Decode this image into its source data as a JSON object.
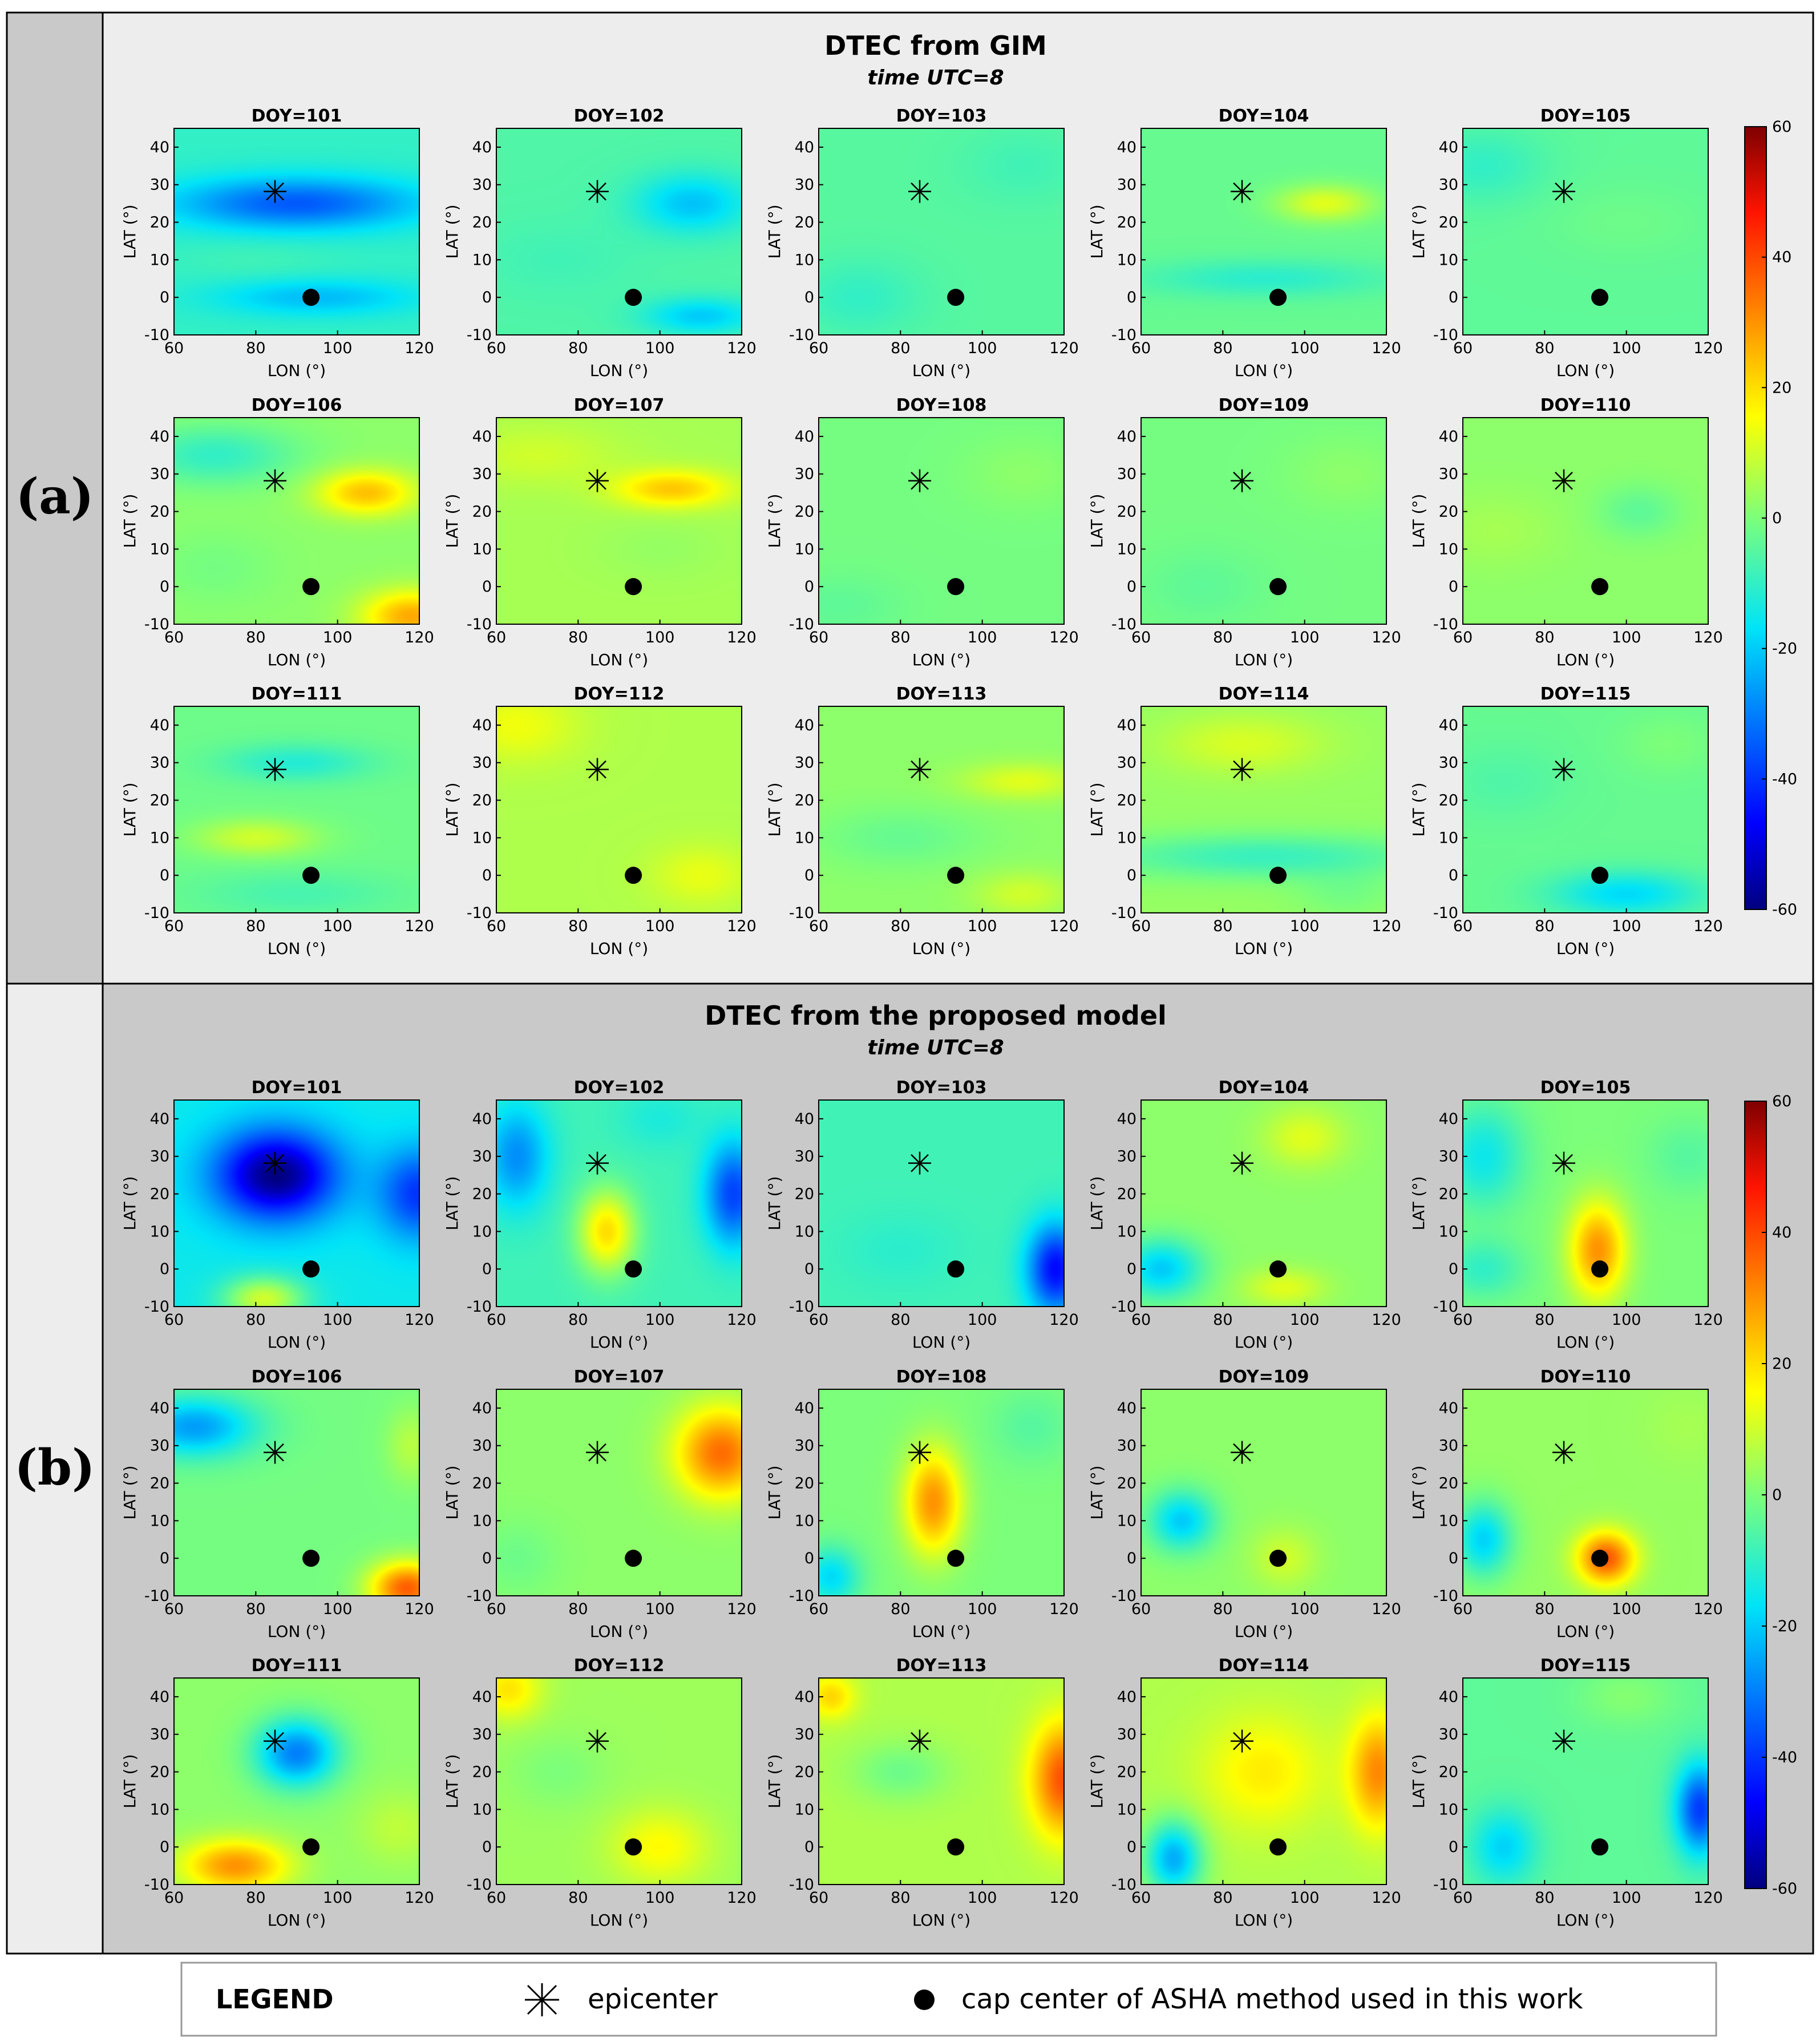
{
  "panels": [
    {
      "label": "(a)",
      "title": "DTEC from GIM",
      "subtitle": "time UTC=8",
      "bg": "#ededed",
      "label_bg": "#c9c9c9"
    },
    {
      "label": "(b)",
      "title": "DTEC from the proposed model",
      "subtitle": "time UTC=8",
      "bg": "#c9c9c9",
      "label_bg": "#ededed"
    }
  ],
  "legend": {
    "title": "LEGEND",
    "items": [
      {
        "symbol": "asterisk",
        "label": "epicenter"
      },
      {
        "symbol": "dot",
        "label": "cap center of ASHA method used in this work"
      }
    ]
  },
  "chart_data": {
    "type": "heatmap",
    "grid": {
      "rows": 3,
      "cols": 5
    },
    "xlabel": "LON (°)",
    "ylabel": "LAT (°)",
    "xlim": [
      60,
      120
    ],
    "ylim": [
      -10,
      45
    ],
    "xticks": [
      60,
      80,
      100,
      120
    ],
    "yticks": [
      -10,
      0,
      10,
      20,
      30,
      40
    ],
    "epicenter": {
      "lon": 84.7,
      "lat": 28.2
    },
    "cap_center": {
      "lon": 93.5,
      "lat": 0
    },
    "colorbar": {
      "min": -60,
      "max": 60,
      "ticks": [
        60,
        40,
        20,
        0,
        -20,
        -40,
        -60
      ]
    },
    "panels": [
      {
        "name": "DTEC from GIM",
        "maps": [
          {
            "label": "DOY=101",
            "base": -10,
            "blobs": [
              [
                90,
                25,
                -25,
                30,
                7
              ],
              [
                95,
                0,
                -12,
                25,
                5
              ],
              [
                80,
                10,
                2,
                20,
                6
              ]
            ]
          },
          {
            "label": "DOY=102",
            "base": -6,
            "blobs": [
              [
                108,
                25,
                -15,
                14,
                8
              ],
              [
                110,
                -5,
                -14,
                14,
                5
              ],
              [
                75,
                10,
                -2,
                20,
                10
              ]
            ]
          },
          {
            "label": "DOY=103",
            "base": -5,
            "blobs": [
              [
                70,
                0,
                -5,
                15,
                10
              ],
              [
                110,
                35,
                -3,
                15,
                10
              ]
            ]
          },
          {
            "label": "DOY=104",
            "base": -3,
            "blobs": [
              [
                105,
                25,
                15,
                12,
                5
              ],
              [
                90,
                5,
                -8,
                30,
                5
              ]
            ]
          },
          {
            "label": "DOY=105",
            "base": -4,
            "blobs": [
              [
                65,
                35,
                -6,
                15,
                10
              ],
              [
                100,
                20,
                2,
                20,
                10
              ]
            ]
          },
          {
            "label": "DOY=106",
            "base": 2,
            "blobs": [
              [
                107,
                25,
                22,
                12,
                6
              ],
              [
                118,
                -8,
                25,
                12,
                7
              ],
              [
                70,
                35,
                -12,
                20,
                8
              ],
              [
                70,
                5,
                -3,
                15,
                10
              ]
            ]
          },
          {
            "label": "DOY=107",
            "base": 5,
            "blobs": [
              [
                103,
                26,
                18,
                14,
                5
              ],
              [
                100,
                10,
                -2,
                15,
                8
              ],
              [
                70,
                35,
                5,
                20,
                8
              ]
            ]
          },
          {
            "label": "DOY=108",
            "base": -1,
            "blobs": [
              [
                110,
                30,
                3,
                15,
                10
              ],
              [
                65,
                -5,
                -3,
                15,
                8
              ]
            ]
          },
          {
            "label": "DOY=109",
            "base": -1,
            "blobs": [
              [
                110,
                30,
                3,
                15,
                10
              ],
              [
                75,
                0,
                -3,
                15,
                10
              ]
            ]
          },
          {
            "label": "DOY=110",
            "base": 2,
            "blobs": [
              [
                103,
                20,
                -6,
                10,
                7
              ],
              [
                68,
                15,
                3,
                15,
                10
              ]
            ]
          },
          {
            "label": "DOY=111",
            "base": -2,
            "blobs": [
              [
                80,
                10,
                12,
                15,
                5
              ],
              [
                90,
                30,
                -10,
                18,
                5
              ],
              [
                90,
                -5,
                -5,
                25,
                6
              ]
            ]
          },
          {
            "label": "DOY=112",
            "base": 6,
            "blobs": [
              [
                65,
                40,
                8,
                15,
                10
              ],
              [
                110,
                0,
                7,
                12,
                8
              ]
            ]
          },
          {
            "label": "DOY=113",
            "base": 2,
            "blobs": [
              [
                110,
                25,
                10,
                15,
                5
              ],
              [
                80,
                10,
                -5,
                20,
                8
              ],
              [
                110,
                -5,
                8,
                12,
                6
              ]
            ]
          },
          {
            "label": "DOY=114",
            "base": 3,
            "blobs": [
              [
                90,
                5,
                -12,
                40,
                6
              ],
              [
                85,
                35,
                8,
                20,
                8
              ],
              [
                110,
                -5,
                -4,
                12,
                6
              ]
            ]
          },
          {
            "label": "DOY=115",
            "base": -3,
            "blobs": [
              [
                100,
                -5,
                -15,
                18,
                6
              ],
              [
                70,
                25,
                -3,
                15,
                10
              ],
              [
                110,
                35,
                3,
                12,
                8
              ]
            ]
          }
        ]
      },
      {
        "name": "DTEC from the proposed model",
        "maps": [
          {
            "label": "DOY=101",
            "base": -15,
            "blobs": [
              [
                85,
                25,
                -45,
                15,
                12
              ],
              [
                120,
                20,
                -25,
                10,
                12
              ],
              [
                82,
                -8,
                25,
                10,
                6
              ],
              [
                65,
                8,
                0,
                8,
                8
              ]
            ]
          },
          {
            "label": "DOY=102",
            "base": -8,
            "blobs": [
              [
                87,
                10,
                28,
                7,
                11
              ],
              [
                118,
                20,
                -30,
                7,
                14
              ],
              [
                65,
                30,
                -20,
                8,
                14
              ],
              [
                100,
                40,
                -5,
                10,
                8
              ]
            ]
          },
          {
            "label": "DOY=103",
            "base": -8,
            "blobs": [
              [
                118,
                0,
                -38,
                7,
                12
              ],
              [
                80,
                5,
                -3,
                15,
                10
              ]
            ]
          },
          {
            "label": "DOY=104",
            "base": 2,
            "blobs": [
              [
                65,
                0,
                -22,
                10,
                8
              ],
              [
                100,
                35,
                10,
                10,
                8
              ],
              [
                95,
                -5,
                10,
                10,
                5
              ]
            ]
          },
          {
            "label": "DOY=105",
            "base": 0,
            "blobs": [
              [
                93,
                5,
                30,
                7,
                13
              ],
              [
                115,
                30,
                -5,
                10,
                10
              ],
              [
                65,
                30,
                -15,
                10,
                14
              ],
              [
                65,
                0,
                -10,
                10,
                8
              ]
            ]
          },
          {
            "label": "DOY=106",
            "base": -1,
            "blobs": [
              [
                117,
                -8,
                38,
                9,
                7
              ],
              [
                65,
                35,
                -25,
                15,
                8
              ],
              [
                118,
                30,
                8,
                6,
                10
              ]
            ]
          },
          {
            "label": "DOY=107",
            "base": 2,
            "blobs": [
              [
                115,
                28,
                33,
                11,
                12
              ],
              [
                65,
                0,
                -4,
                10,
                10
              ]
            ]
          },
          {
            "label": "DOY=108",
            "base": 0,
            "blobs": [
              [
                88,
                15,
                30,
                7,
                14
              ],
              [
                63,
                -5,
                -18,
                7,
                8
              ],
              [
                112,
                35,
                -5,
                10,
                10
              ]
            ]
          },
          {
            "label": "DOY=109",
            "base": 2,
            "blobs": [
              [
                70,
                10,
                -22,
                8,
                8
              ],
              [
                95,
                0,
                8,
                8,
                8
              ]
            ]
          },
          {
            "label": "DOY=110",
            "base": 3,
            "blobs": [
              [
                95,
                0,
                35,
                7,
                7
              ],
              [
                65,
                5,
                -22,
                7,
                10
              ],
              [
                115,
                35,
                2,
                10,
                10
              ]
            ]
          },
          {
            "label": "DOY=111",
            "base": 2,
            "blobs": [
              [
                90,
                25,
                -32,
                10,
                9
              ],
              [
                75,
                -5,
                28,
                13,
                7
              ],
              [
                115,
                5,
                6,
                10,
                10
              ]
            ]
          },
          {
            "label": "DOY=112",
            "base": 4,
            "blobs": [
              [
                63,
                42,
                15,
                8,
                8
              ],
              [
                100,
                0,
                12,
                12,
                10
              ],
              [
                75,
                20,
                -4,
                12,
                10
              ]
            ]
          },
          {
            "label": "DOY=113",
            "base": 6,
            "blobs": [
              [
                120,
                18,
                33,
                8,
                15
              ],
              [
                80,
                20,
                -8,
                12,
                8
              ],
              [
                63,
                40,
                15,
                6,
                6
              ]
            ]
          },
          {
            "label": "DOY=114",
            "base": 6,
            "blobs": [
              [
                68,
                -3,
                -30,
                7,
                10
              ],
              [
                118,
                20,
                25,
                7,
                15
              ],
              [
                90,
                20,
                12,
                15,
                15
              ]
            ]
          },
          {
            "label": "DOY=115",
            "base": -4,
            "blobs": [
              [
                118,
                10,
                -35,
                6,
                12
              ],
              [
                70,
                0,
                -15,
                8,
                10
              ],
              [
                100,
                40,
                5,
                12,
                8
              ]
            ]
          }
        ]
      }
    ]
  }
}
